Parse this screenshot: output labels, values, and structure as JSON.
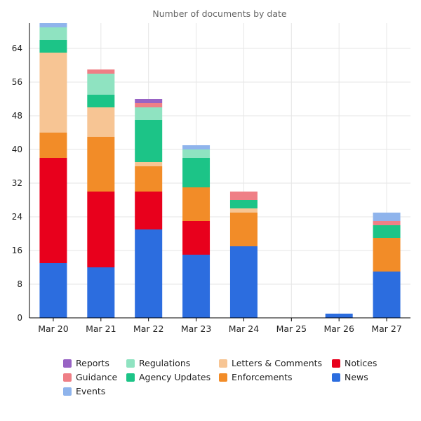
{
  "chart_data": {
    "type": "bar",
    "stacked": true,
    "title": "Number of documents by date",
    "xlabel": "",
    "ylabel": "",
    "categories": [
      "Mar 20",
      "Mar 21",
      "Mar 22",
      "Mar 23",
      "Mar 24",
      "Mar 25",
      "Mar 26",
      "Mar 27"
    ],
    "yticks": [
      0,
      8,
      16,
      24,
      32,
      40,
      48,
      56,
      64
    ],
    "ylim": [
      0,
      70
    ],
    "grid": true,
    "legend_position": "bottom",
    "series": [
      {
        "name": "News",
        "color": "#2c6ddf",
        "values": [
          13,
          12,
          21,
          15,
          17,
          0,
          1,
          11
        ]
      },
      {
        "name": "Notices",
        "color": "#e8001c",
        "values": [
          25,
          18,
          9,
          8,
          0,
          0,
          0,
          0
        ]
      },
      {
        "name": "Enforcements",
        "color": "#f28c28",
        "values": [
          6,
          13,
          6,
          8,
          8,
          0,
          0,
          8
        ]
      },
      {
        "name": "Letters & Comments",
        "color": "#f7c594",
        "values": [
          19,
          7,
          1,
          0,
          1,
          0,
          0,
          0
        ]
      },
      {
        "name": "Agency Updates",
        "color": "#1cc487",
        "values": [
          3,
          3,
          10,
          7,
          2,
          0,
          0,
          3
        ]
      },
      {
        "name": "Regulations",
        "color": "#8fe3c1",
        "values": [
          3,
          5,
          3,
          2,
          0,
          0,
          0,
          0
        ]
      },
      {
        "name": "Guidance",
        "color": "#ef7f86",
        "values": [
          0,
          1,
          1,
          0,
          2,
          0,
          0,
          1
        ]
      },
      {
        "name": "Events",
        "color": "#8fb4ec",
        "values": [
          1,
          0,
          0,
          1,
          0,
          0,
          0,
          2
        ]
      },
      {
        "name": "Reports",
        "color": "#9863c4",
        "values": [
          0,
          0,
          1,
          0,
          0,
          0,
          0,
          0
        ]
      }
    ],
    "legend_order": [
      "Reports",
      "Regulations",
      "Letters & Comments",
      "Notices",
      "Guidance",
      "Agency Updates",
      "Enforcements",
      "News",
      "Events"
    ]
  }
}
